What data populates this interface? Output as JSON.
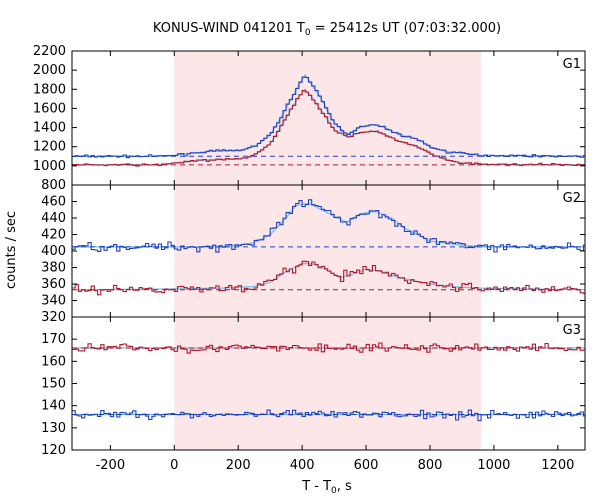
{
  "chart_data": {
    "type": "line",
    "title_main": "KONUS-WIND 041201 T",
    "title_sub": "0",
    "title_rest": " = 25412s UT (07:03:32.000)",
    "xlabel_main": "T - T",
    "xlabel_sub": "0",
    "xlabel_rest": ", s",
    "ylabel": "counts / sec",
    "xlim": [
      -320,
      1285
    ],
    "xticks": [
      -200,
      0,
      200,
      400,
      600,
      800,
      1000,
      1200
    ],
    "shaded_interval": [
      0,
      960
    ],
    "colors": {
      "red": "#b2182b",
      "blue": "#2040c0",
      "light_blue": "#6fc0e8",
      "shade": "#fde6e8"
    },
    "panels": [
      {
        "name": "G1",
        "ylim": [
          800,
          2200
        ],
        "yticks": [
          800,
          1000,
          1200,
          1400,
          1600,
          1800,
          2000,
          2200
        ],
        "series": [
          {
            "color": "blue",
            "background": 1100,
            "profile": [
              [
                -320,
                1100
              ],
              [
                -50,
                1100
              ],
              [
                0,
                1110
              ],
              [
                100,
                1150
              ],
              [
                200,
                1160
              ],
              [
                250,
                1200
              ],
              [
                300,
                1320
              ],
              [
                350,
                1600
              ],
              [
                390,
                1850
              ],
              [
                410,
                1950
              ],
              [
                430,
                1850
              ],
              [
                460,
                1700
              ],
              [
                500,
                1450
              ],
              [
                540,
                1330
              ],
              [
                580,
                1400
              ],
              [
                620,
                1430
              ],
              [
                660,
                1400
              ],
              [
                700,
                1330
              ],
              [
                760,
                1280
              ],
              [
                800,
                1200
              ],
              [
                850,
                1150
              ],
              [
                900,
                1130
              ],
              [
                960,
                1110
              ],
              [
                1285,
                1100
              ]
            ]
          },
          {
            "color": "red",
            "background": 1010,
            "profile": [
              [
                -320,
                1010
              ],
              [
                -50,
                1010
              ],
              [
                0,
                1030
              ],
              [
                100,
                1060
              ],
              [
                200,
                1070
              ],
              [
                250,
                1110
              ],
              [
                300,
                1230
              ],
              [
                350,
                1500
              ],
              [
                390,
                1720
              ],
              [
                410,
                1800
              ],
              [
                430,
                1720
              ],
              [
                460,
                1580
              ],
              [
                500,
                1380
              ],
              [
                540,
                1300
              ],
              [
                580,
                1350
              ],
              [
                620,
                1360
              ],
              [
                660,
                1330
              ],
              [
                700,
                1260
              ],
              [
                760,
                1200
              ],
              [
                800,
                1130
              ],
              [
                850,
                1060
              ],
              [
                900,
                1030
              ],
              [
                960,
                1015
              ],
              [
                1285,
                1010
              ]
            ]
          }
        ]
      },
      {
        "name": "G2",
        "ylim": [
          320,
          480
        ],
        "yticks": [
          320,
          340,
          360,
          380,
          400,
          420,
          440,
          460
        ],
        "series": [
          {
            "color": "blue",
            "background": 405,
            "profile": [
              [
                -320,
                405
              ],
              [
                0,
                405
              ],
              [
                150,
                405
              ],
              [
                250,
                410
              ],
              [
                300,
                420
              ],
              [
                350,
                440
              ],
              [
                380,
                455
              ],
              [
                420,
                458
              ],
              [
                460,
                450
              ],
              [
                500,
                442
              ],
              [
                540,
                435
              ],
              [
                580,
                445
              ],
              [
                630,
                448
              ],
              [
                680,
                440
              ],
              [
                720,
                428
              ],
              [
                760,
                420
              ],
              [
                800,
                412
              ],
              [
                880,
                408
              ],
              [
                960,
                405
              ],
              [
                1285,
                405
              ]
            ]
          },
          {
            "color": "red",
            "background": 353,
            "profile": [
              [
                -320,
                353
              ],
              [
                0,
                354
              ],
              [
                150,
                355
              ],
              [
                250,
                357
              ],
              [
                300,
                362
              ],
              [
                350,
                375
              ],
              [
                400,
                385
              ],
              [
                440,
                384
              ],
              [
                480,
                376
              ],
              [
                520,
                368
              ],
              [
                560,
                372
              ],
              [
                600,
                378
              ],
              [
                640,
                376
              ],
              [
                700,
                368
              ],
              [
                760,
                363
              ],
              [
                820,
                359
              ],
              [
                900,
                356
              ],
              [
                960,
                355
              ],
              [
                1285,
                353
              ]
            ]
          }
        ]
      },
      {
        "name": "G3",
        "ylim": [
          120,
          180
        ],
        "yticks": [
          120,
          130,
          140,
          150,
          160,
          170
        ],
        "series": [
          {
            "color": "red",
            "background": 166,
            "profile": [
              [
                -320,
                166
              ],
              [
                1285,
                166
              ]
            ]
          },
          {
            "color": "blue",
            "background": 136,
            "profile": [
              [
                -320,
                136
              ],
              [
                1285,
                136
              ]
            ]
          }
        ]
      }
    ]
  }
}
